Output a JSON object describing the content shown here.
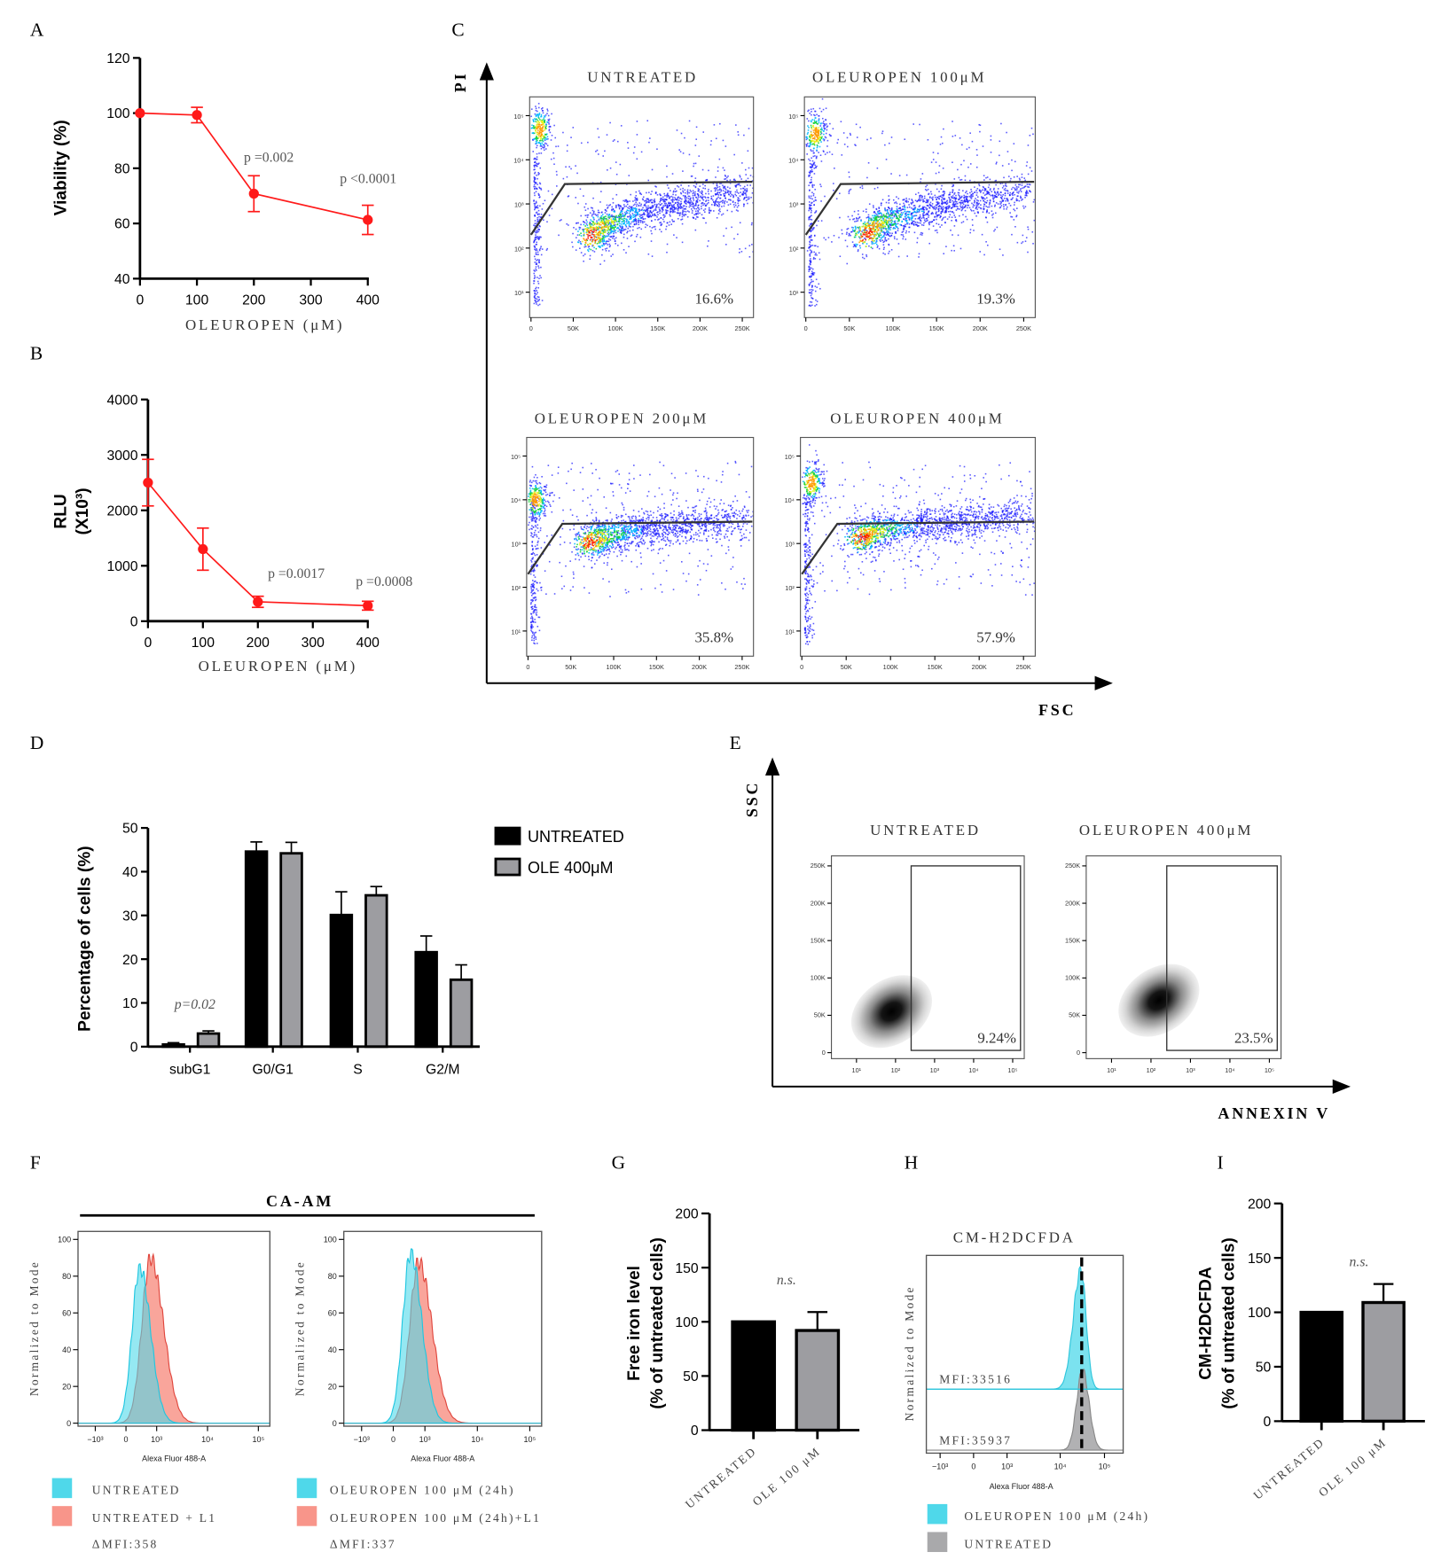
{
  "panel_labels": [
    "A",
    "B",
    "C",
    "D",
    "E",
    "F",
    "G",
    "H",
    "I"
  ],
  "chart_data": [
    {
      "panel": "A",
      "type": "line",
      "title": "",
      "xlabel": "OLEUROPEN (μM)",
      "ylabel": "Viability (%)",
      "xlim": [
        0,
        400
      ],
      "ylim": [
        40,
        120
      ],
      "xticks": [
        0,
        100,
        200,
        300,
        400
      ],
      "yticks": [
        40,
        60,
        80,
        100,
        120
      ],
      "series": [
        {
          "name": "Viability",
          "x": [
            0,
            100,
            200,
            400
          ],
          "y": [
            100,
            99.3,
            70.8,
            61.3
          ],
          "err": [
            0,
            2.8,
            6.5,
            5.3
          ],
          "color": "#ff1a1a"
        }
      ],
      "annotations": [
        {
          "text": "p =0.002",
          "x": 200
        },
        {
          "text": "p <0.0001",
          "x": 400
        }
      ]
    },
    {
      "panel": "B",
      "type": "line",
      "title": "",
      "xlabel": "OLEUROPEN (μM)",
      "ylabel": "RLU",
      "ylabel2": "(X10³)",
      "xlim": [
        0,
        400
      ],
      "ylim": [
        0,
        4000
      ],
      "xticks": [
        0,
        100,
        200,
        300,
        400
      ],
      "yticks": [
        0,
        1000,
        2000,
        3000,
        4000
      ],
      "series": [
        {
          "name": "RLU",
          "x": [
            0,
            100,
            200,
            400
          ],
          "y": [
            2500,
            1300,
            350,
            280
          ],
          "err": [
            420,
            380,
            100,
            80
          ],
          "color": "#ff1a1a"
        }
      ],
      "annotations": [
        {
          "text": "p =0.0017",
          "x": 200
        },
        {
          "text": "p =0.0008",
          "x": 400
        }
      ]
    },
    {
      "panel": "C",
      "type": "scatter",
      "xlabel": "FSC",
      "ylabel": "PI",
      "xticks": [
        "0",
        "50K",
        "100K",
        "150K",
        "200K",
        "250K"
      ],
      "yticks": [
        "10⁵",
        "10⁴",
        "10³",
        "10²",
        "10¹"
      ],
      "gate_data_units": [
        [
          0,
          2.3
        ],
        [
          40000,
          3.45
        ],
        [
          262000,
          3.5
        ]
      ],
      "panels": [
        {
          "title": "UNTREATED",
          "gate_percent": "16.6%",
          "live_band": {
            "fsc_start": 70000,
            "log_pi_start": 2.2,
            "fsc_end": 255000,
            "log_pi_end": 3.3
          },
          "dead_cluster": {
            "fsc": 10000,
            "log_pi": 4.7
          }
        },
        {
          "title": "OLEUROPEN 100μM",
          "gate_percent": "19.3%",
          "live_band": {
            "fsc_start": 68000,
            "log_pi_start": 2.25,
            "fsc_end": 255000,
            "log_pi_end": 3.3
          },
          "dead_cluster": {
            "fsc": 10000,
            "log_pi": 4.6
          }
        },
        {
          "title": "OLEUROPEN 200μM",
          "gate_percent": "35.8%",
          "live_band": {
            "fsc_start": 70000,
            "log_pi_start": 3.0,
            "fsc_end": 255000,
            "log_pi_end": 3.55
          },
          "dead_cluster": {
            "fsc": 8000,
            "log_pi": 4.0
          }
        },
        {
          "title": "OLEUROPEN 400μM",
          "gate_percent": "57.9%",
          "live_band": {
            "fsc_start": 65000,
            "log_pi_start": 3.1,
            "fsc_end": 255000,
            "log_pi_end": 3.65
          },
          "dead_cluster": {
            "fsc": 10000,
            "log_pi": 4.4
          }
        }
      ]
    },
    {
      "panel": "D",
      "type": "bar",
      "ylabel": "Percentage  of cells (%)",
      "ylim": [
        0,
        50
      ],
      "yticks": [
        0,
        10,
        20,
        30,
        40,
        50
      ],
      "categories": [
        "subG1",
        "G0/G1",
        "S",
        "G2/M"
      ],
      "series": [
        {
          "name": "UNTREATED",
          "values": [
            0.5,
            44.6,
            30.1,
            21.6
          ],
          "err": [
            0.4,
            2.2,
            5.3,
            3.7
          ],
          "color": "#000000"
        },
        {
          "name": "OLE 400μM",
          "values": [
            3.0,
            44.2,
            34.6,
            15.3
          ],
          "err": [
            0.6,
            2.5,
            2.0,
            3.4
          ],
          "color": "#9d9da1"
        }
      ],
      "annotations": [
        {
          "text": "p=0.02",
          "category": "subG1"
        }
      ],
      "legend": "right"
    },
    {
      "panel": "E",
      "type": "scatter",
      "xlabel": "ANNEXIN V",
      "ylabel": "SSC",
      "xticks": [
        "10¹",
        "10²",
        "10³",
        "10⁴",
        "10⁵"
      ],
      "yticks": [
        "0",
        "50K",
        "100K",
        "150K",
        "200K",
        "250K"
      ],
      "panels": [
        {
          "title": "UNTREATED",
          "gate_percent": "9.24%",
          "population_center": {
            "log_annexin": 1.9,
            "ssc": 55000
          }
        },
        {
          "title": "OLEUROPEN 400μM",
          "gate_percent": "23.5%",
          "population_center": {
            "log_annexin": 2.2,
            "ssc": 70000
          }
        }
      ]
    },
    {
      "panel": "F",
      "type": "area",
      "title": "CA-AM",
      "xlabel": "Alexa Fluor 488-A",
      "ylabel": "Normalized to Mode",
      "xticks": [
        "−10³",
        "0",
        "10³",
        "10⁴",
        "10⁵"
      ],
      "yticks": [
        0,
        20,
        40,
        60,
        80,
        100
      ],
      "panels": [
        {
          "series": [
            {
              "name": "UNTREATED",
              "peak_value": 450,
              "peak_height": 85,
              "color": "#4fd8ea"
            },
            {
              "name": "UNTREATED + L1",
              "peak_value": 800,
              "peak_height": 90,
              "color": "#f8958a"
            }
          ],
          "delta_mfi": "ΔMFI:358"
        },
        {
          "series": [
            {
              "name": "OLEUROPEN 100 μM (24h)",
              "peak_value": 550,
              "peak_height": 93,
              "color": "#4fd8ea"
            },
            {
              "name": "OLEUROPEN 100 μM (24h)+L1",
              "peak_value": 800,
              "peak_height": 88,
              "color": "#f8958a"
            }
          ],
          "delta_mfi": "ΔMFI:337"
        }
      ]
    },
    {
      "panel": "G",
      "type": "bar",
      "ylabel": "Free iron level",
      "ylabel2": "(% of untreated cells)",
      "ylim": [
        0,
        200
      ],
      "yticks": [
        0,
        50,
        100,
        150,
        200
      ],
      "categories": [
        "UNTREATED",
        "OLE 100 μM"
      ],
      "values": [
        100,
        92
      ],
      "err": [
        0,
        17
      ],
      "colors": [
        "#000000",
        "#9d9da1"
      ],
      "annotations": [
        {
          "text": "n.s."
        }
      ]
    },
    {
      "panel": "H",
      "type": "area",
      "title": "CM-H2DCFDA",
      "xlabel": "Alexa Fluor 488-A",
      "ylabel": "Normalized to Mode",
      "xticks": [
        "−10³",
        "0",
        "10³",
        "10⁴",
        "10⁵"
      ],
      "series": [
        {
          "name": "OLEUROPEN 100 μM (24h)",
          "mfi_label": "MFI:33516",
          "peak_value": 26000,
          "color": "#4fd8ea"
        },
        {
          "name": "UNTREATED",
          "mfi_label": "MFI:35937",
          "peak_value": 28000,
          "color": "#a9a9ab"
        }
      ],
      "reference_line_value": 27000
    },
    {
      "panel": "I",
      "type": "bar",
      "ylabel": "CM-H2DCFDA",
      "ylabel2": "(% of untreated cells)",
      "ylim": [
        0,
        200
      ],
      "yticks": [
        0,
        50,
        100,
        150,
        200
      ],
      "categories": [
        "UNTREATED",
        "OLE 100 μM"
      ],
      "values": [
        100,
        109
      ],
      "err": [
        0,
        17
      ],
      "colors": [
        "#000000",
        "#9d9da1"
      ],
      "annotations": [
        {
          "text": "n.s."
        }
      ]
    }
  ]
}
